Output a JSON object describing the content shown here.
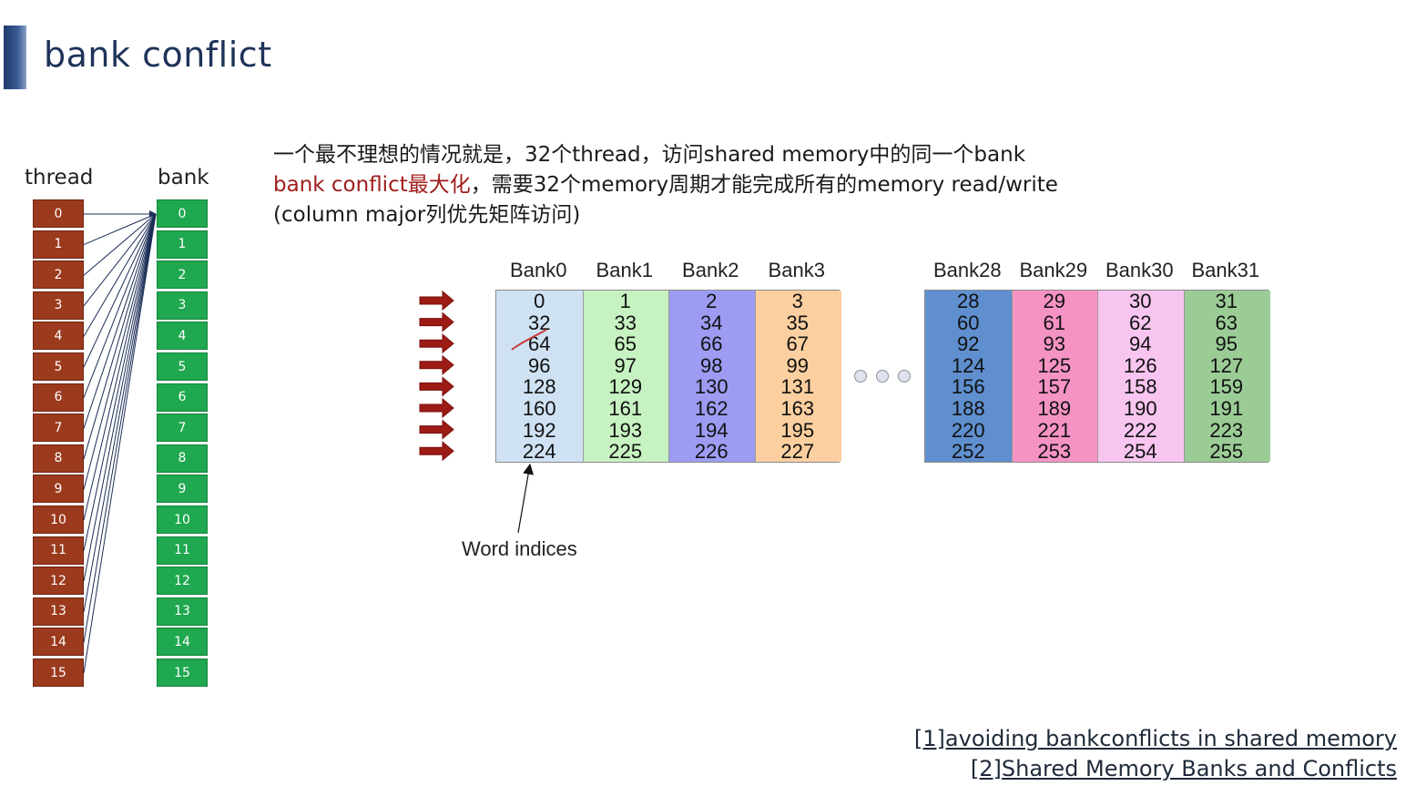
{
  "title": "bank conflict",
  "labels": {
    "thread": "thread",
    "bank": "bank"
  },
  "threads": [
    "0",
    "1",
    "2",
    "3",
    "4",
    "5",
    "6",
    "7",
    "8",
    "9",
    "10",
    "11",
    "12",
    "13",
    "14",
    "15"
  ],
  "banks": [
    "0",
    "1",
    "2",
    "3",
    "4",
    "5",
    "6",
    "7",
    "8",
    "9",
    "10",
    "11",
    "12",
    "13",
    "14",
    "15"
  ],
  "description": {
    "line1": "一个最不理想的情况就是，32个thread，访问shared memory中的同一个bank",
    "line2_red": "bank conflict最大化",
    "line2_rest": "，需要32个memory周期才能完成所有的memory read/write",
    "line3": "(column major列优先矩阵访问)"
  },
  "left_grid": {
    "headers": [
      "Bank0",
      "Bank1",
      "Bank2",
      "Bank3"
    ],
    "colors": [
      "#cfe2f3",
      "#c7f2c1",
      "#9d9cf2",
      "#fbcf9f"
    ],
    "rows": [
      [
        "0",
        "1",
        "2",
        "3"
      ],
      [
        "32",
        "33",
        "34",
        "35"
      ],
      [
        "64",
        "65",
        "66",
        "67"
      ],
      [
        "96",
        "97",
        "98",
        "99"
      ],
      [
        "128",
        "129",
        "130",
        "131"
      ],
      [
        "160",
        "161",
        "162",
        "163"
      ],
      [
        "192",
        "193",
        "194",
        "195"
      ],
      [
        "224",
        "225",
        "226",
        "227"
      ]
    ]
  },
  "right_grid": {
    "headers": [
      "Bank28",
      "Bank29",
      "Bank30",
      "Bank31"
    ],
    "colors": [
      "#5f8fcf",
      "#f593c4",
      "#f8c5f0",
      "#9bcc96"
    ],
    "rows": [
      [
        "28",
        "29",
        "30",
        "31"
      ],
      [
        "60",
        "61",
        "62",
        "63"
      ],
      [
        "92",
        "93",
        "94",
        "95"
      ],
      [
        "124",
        "125",
        "126",
        "127"
      ],
      [
        "156",
        "157",
        "158",
        "159"
      ],
      [
        "188",
        "189",
        "190",
        "191"
      ],
      [
        "220",
        "221",
        "222",
        "223"
      ],
      [
        "252",
        "253",
        "254",
        "255"
      ]
    ]
  },
  "word_indices_label": "Word indices",
  "references": [
    "[1]avoiding bankconflicts in shared memory",
    "[2]Shared Memory Banks and Conflicts"
  ],
  "colors": {
    "thread": "#9c3a1e",
    "bank": "#1fa84f",
    "arrow": "#9c1b14",
    "title": "#1f3359"
  }
}
